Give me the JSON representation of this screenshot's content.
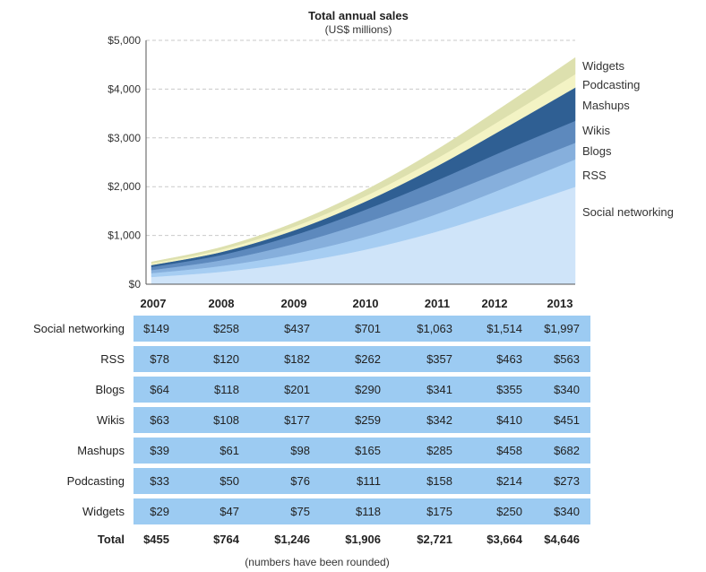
{
  "chart_data": {
    "type": "area",
    "stacked": true,
    "title": "Total annual sales",
    "subtitle": "(US$ millions)",
    "x": [
      "2007",
      "2008",
      "2009",
      "2010",
      "2011",
      "2012",
      "2013"
    ],
    "ylim": [
      0,
      5000
    ],
    "yticks": [
      "$0",
      "$1,000",
      "$2,000",
      "$3,000",
      "$4,000",
      "$5,000"
    ],
    "grid": true,
    "series": [
      {
        "name": "Social networking",
        "values": [
          149,
          258,
          437,
          701,
          1063,
          1514,
          1997
        ],
        "display": [
          "$149",
          "$258",
          "$437",
          "$701",
          "$1,063",
          "$1,514",
          "$1,997"
        ],
        "color": "#cfe4f9"
      },
      {
        "name": "RSS",
        "values": [
          78,
          120,
          182,
          262,
          357,
          463,
          563
        ],
        "display": [
          "$78",
          "$120",
          "$182",
          "$262",
          "$357",
          "$463",
          "$563"
        ],
        "color": "#a6cdf2"
      },
      {
        "name": "Blogs",
        "values": [
          64,
          118,
          201,
          290,
          341,
          355,
          340
        ],
        "display": [
          "$64",
          "$118",
          "$201",
          "$290",
          "$341",
          "$355",
          "$340"
        ],
        "color": "#86afdc"
      },
      {
        "name": "Wikis",
        "values": [
          63,
          108,
          177,
          259,
          342,
          410,
          451
        ],
        "display": [
          "$63",
          "$108",
          "$177",
          "$259",
          "$342",
          "$410",
          "$451"
        ],
        "color": "#5d89bd"
      },
      {
        "name": "Mashups",
        "values": [
          39,
          61,
          98,
          165,
          285,
          458,
          682
        ],
        "display": [
          "$39",
          "$61",
          "$98",
          "$165",
          "$285",
          "$458",
          "$682"
        ],
        "color": "#2f5f93"
      },
      {
        "name": "Podcasting",
        "values": [
          33,
          50,
          76,
          111,
          158,
          214,
          273
        ],
        "display": [
          "$33",
          "$50",
          "$76",
          "$111",
          "$158",
          "$214",
          "$273"
        ],
        "color": "#f3f3c4"
      },
      {
        "name": "Widgets",
        "values": [
          29,
          47,
          75,
          118,
          175,
          250,
          340
        ],
        "display": [
          "$29",
          "$47",
          "$75",
          "$118",
          "$175",
          "$250",
          "$340"
        ],
        "color": "#dde0ae"
      }
    ],
    "total_label": "Total",
    "totals": [
      "$455",
      "$764",
      "$1,246",
      "$1,906",
      "$2,721",
      "$3,664",
      "$4,646"
    ],
    "footnote": "(numbers have been rounded)",
    "table_color": "#9ccbf2"
  }
}
